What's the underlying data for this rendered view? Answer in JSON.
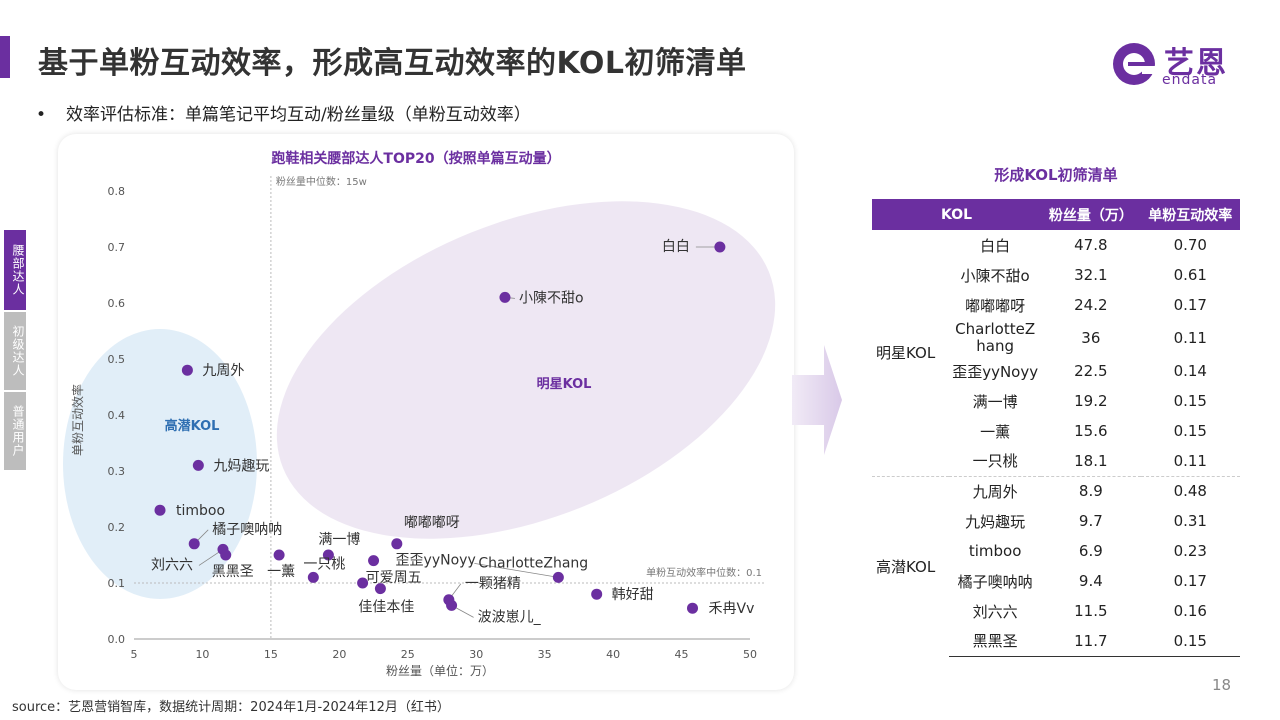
{
  "page": {
    "title": "基于单粉互动效率，形成高互动效率的KOL初筛清单",
    "bullet": "效率评估标准：单篇笔记平均互动/粉丝量级（单粉互动效率）",
    "source": "source：艺恩营销智库，数据统计周期：2024年1月-2024年12月（红书）",
    "page_number": "18"
  },
  "logo": {
    "cn": "艺恩",
    "en": "endata"
  },
  "side_tabs": [
    {
      "label": "腰部达人",
      "active": true
    },
    {
      "label": "初级达人",
      "active": false
    },
    {
      "label": "普通用户",
      "active": false
    }
  ],
  "chart_data": {
    "type": "scatter",
    "title": "跑鞋相关腰部达人TOP20（按照单篇互动量）",
    "xlabel": "粉丝量（单位：万）",
    "ylabel": "单粉互动效率",
    "xlim": [
      5,
      50
    ],
    "ylim": [
      0,
      0.8
    ],
    "x_ticks": [
      5,
      10,
      15,
      20,
      25,
      30,
      35,
      40,
      45,
      50
    ],
    "y_ticks": [
      0.0,
      0.1,
      0.2,
      0.3,
      0.4,
      0.5,
      0.6,
      0.7,
      0.8
    ],
    "x_median": {
      "value": 15,
      "label": "粉丝量中位数：15w"
    },
    "y_median": {
      "value": 0.1,
      "label": "单粉互动效率中位数：0.1"
    },
    "clusters": [
      {
        "label": "高潜KOL",
        "color": "#2f6fb2"
      },
      {
        "label": "明星KOL",
        "color": "#6b2fa0"
      }
    ],
    "point_color": "#6b2fa0",
    "points": [
      {
        "name": "白白",
        "x": 47.8,
        "y": 0.7
      },
      {
        "name": "小陳不甜o",
        "x": 32.1,
        "y": 0.61
      },
      {
        "name": "九周外",
        "x": 8.9,
        "y": 0.48
      },
      {
        "name": "九妈趣玩",
        "x": 9.7,
        "y": 0.31
      },
      {
        "name": "timboo",
        "x": 6.9,
        "y": 0.23
      },
      {
        "name": "橘子噢呐呐",
        "x": 9.4,
        "y": 0.17
      },
      {
        "name": "刘六六",
        "x": 11.5,
        "y": 0.16
      },
      {
        "name": "黑黑圣",
        "x": 11.7,
        "y": 0.15
      },
      {
        "name": "嘟嘟嘟呀",
        "x": 24.2,
        "y": 0.17
      },
      {
        "name": "CharlotteZhang",
        "x": 36,
        "y": 0.11
      },
      {
        "name": "歪歪yyNoyy",
        "x": 22.5,
        "y": 0.14
      },
      {
        "name": "满一博",
        "x": 19.2,
        "y": 0.15
      },
      {
        "name": "一薰",
        "x": 15.6,
        "y": 0.15
      },
      {
        "name": "一只桃",
        "x": 18.1,
        "y": 0.11
      },
      {
        "name": "可爱周五",
        "x": 21.7,
        "y": 0.1
      },
      {
        "name": "佳佳本佳",
        "x": 23.0,
        "y": 0.09
      },
      {
        "name": "一颗猪精",
        "x": 28.0,
        "y": 0.07
      },
      {
        "name": "波波崽儿_",
        "x": 28.2,
        "y": 0.06
      },
      {
        "name": "韩好甜",
        "x": 38.8,
        "y": 0.08
      },
      {
        "name": "禾冉Vv",
        "x": 45.8,
        "y": 0.055
      }
    ]
  },
  "table": {
    "title": "形成KOL初筛清单",
    "headers": [
      "KOL",
      "粉丝量（万）",
      "单粉互动效率"
    ],
    "groups": [
      {
        "name": "明星KOL",
        "rows": [
          [
            "白白",
            "47.8",
            "0.70"
          ],
          [
            "小陳不甜o",
            "32.1",
            "0.61"
          ],
          [
            "嘟嘟嘟呀",
            "24.2",
            "0.17"
          ],
          [
            "CharlotteZhang",
            "36",
            "0.11"
          ],
          [
            "歪歪yyNoyy",
            "22.5",
            "0.14"
          ],
          [
            "满一博",
            "19.2",
            "0.15"
          ],
          [
            "一薰",
            "15.6",
            "0.15"
          ],
          [
            "一只桃",
            "18.1",
            "0.11"
          ]
        ]
      },
      {
        "name": "高潜KOL",
        "rows": [
          [
            "九周外",
            "8.9",
            "0.48"
          ],
          [
            "九妈趣玩",
            "9.7",
            "0.31"
          ],
          [
            "timboo",
            "6.9",
            "0.23"
          ],
          [
            "橘子噢呐呐",
            "9.4",
            "0.17"
          ],
          [
            "刘六六",
            "11.5",
            "0.16"
          ],
          [
            "黑黑圣",
            "11.7",
            "0.15"
          ]
        ]
      }
    ]
  }
}
